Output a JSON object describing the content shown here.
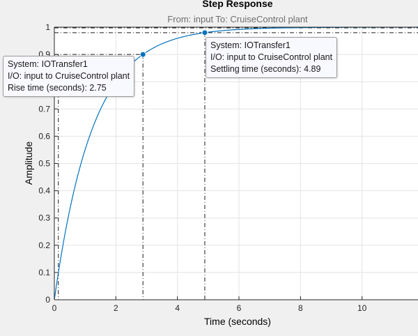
{
  "chart_data": {
    "type": "line",
    "title": "Step Response",
    "subtitle": "From: input  To: CruiseControl plant",
    "xlabel": "Time (seconds)",
    "ylabel": "Amplitude",
    "xlim": [
      0,
      12
    ],
    "ylim": [
      0,
      1
    ],
    "x_ticks": [
      "0",
      "2",
      "4",
      "6",
      "8",
      "10"
    ],
    "y_ticks": [
      "0",
      "0.1",
      "0.2",
      "0.3",
      "0.4",
      "0.5",
      "0.6",
      "0.7",
      "0.8",
      "0.9",
      "1"
    ],
    "grid": true,
    "line_color": "#0072bd",
    "reference_lines": {
      "final_value": 1.0,
      "settling_band_low": 0.98,
      "rise_start_y": 0.1,
      "rise_end_y": 0.9,
      "rise_start_x": 0.13,
      "rise_end_x": 2.88,
      "settling_x": 4.89
    },
    "series": [
      {
        "time_constant": 1.25,
        "final_value": 1.0,
        "x": [
          0,
          0.5,
          1,
          1.5,
          2,
          2.5,
          3,
          4,
          5,
          6,
          7,
          8,
          9,
          10,
          11,
          12
        ],
        "y": [
          0,
          0.33,
          0.551,
          0.699,
          0.798,
          0.865,
          0.909,
          0.959,
          0.982,
          0.992,
          0.996,
          0.998,
          0.999,
          1.0,
          1.0,
          1.0
        ]
      }
    ],
    "markers": [
      {
        "x": 2.88,
        "y": 0.9
      },
      {
        "x": 4.89,
        "y": 0.98
      }
    ]
  },
  "datatips": {
    "rise": {
      "system": "System: IOTransfer1",
      "io": "I/O: input to CruiseControl plant",
      "metric": "Rise time (seconds): 2.75"
    },
    "settling": {
      "system": "System: IOTransfer1",
      "io": "I/O: input to CruiseControl plant",
      "metric": "Settling time (seconds): 4.89"
    }
  }
}
